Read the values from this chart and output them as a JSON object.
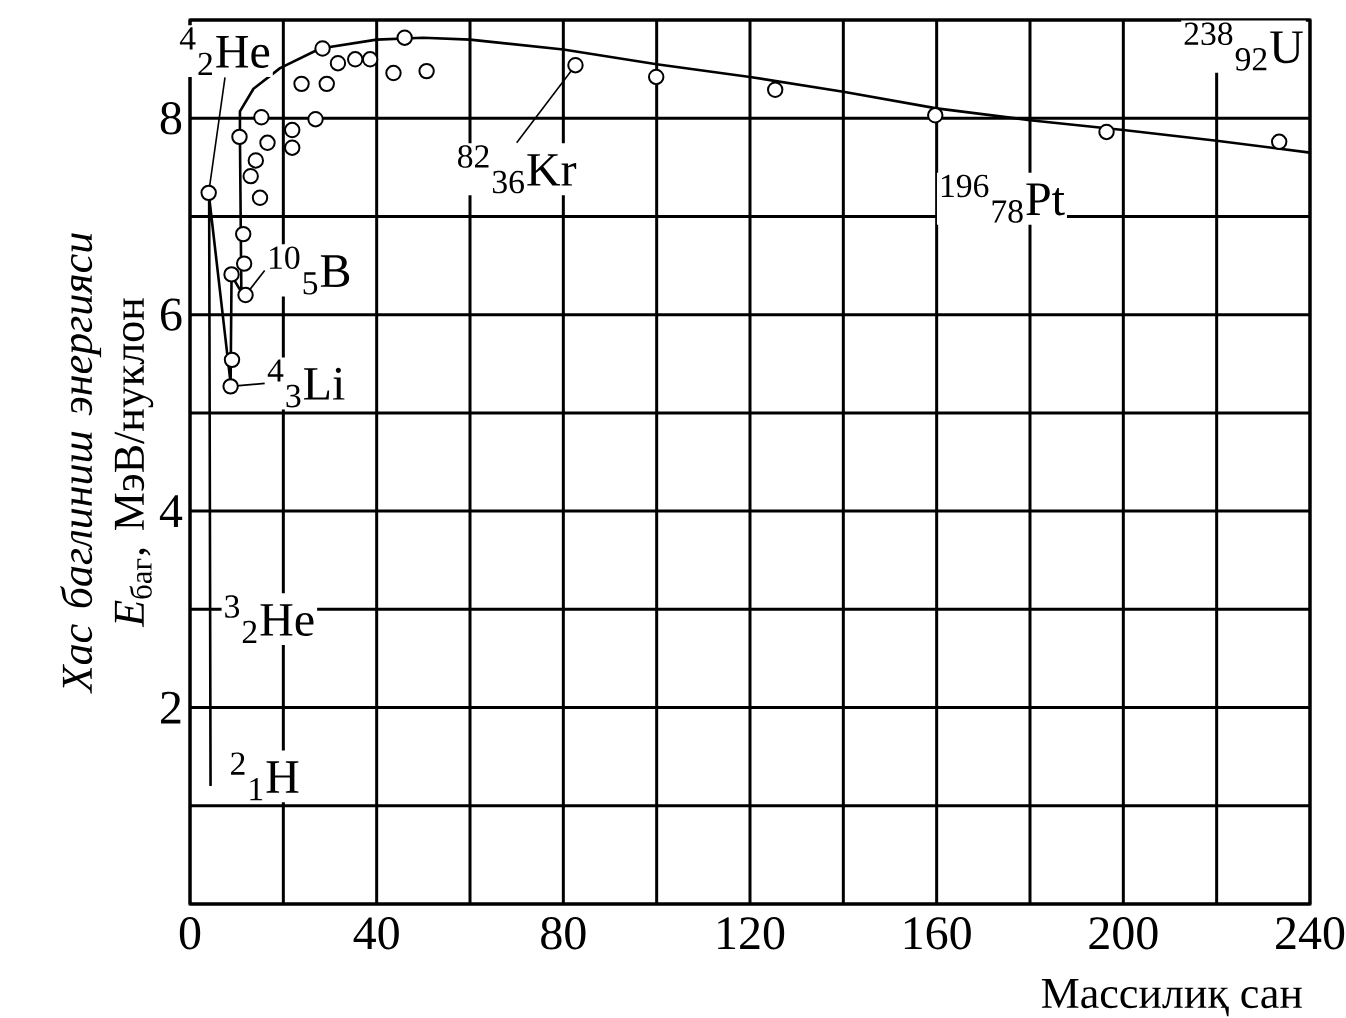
{
  "chart_data": {
    "type": "scatter",
    "xlabel": "Массилиқ сан",
    "ylabel": "*Хас баглиниш энергияси* *E*$_{баг}$, МэВ/нуклон",
    "xlim": [
      0,
      240
    ],
    "ylim": [
      0,
      9
    ],
    "xticks": [
      0,
      {
        "value": 20,
        "label": null
      },
      40,
      {
        "value": 60,
        "label": null
      },
      80,
      {
        "value": 100,
        "label": null
      },
      120,
      {
        "value": 140,
        "label": null
      },
      160,
      {
        "value": 180,
        "label": null
      },
      200,
      {
        "value": 220,
        "label": null
      },
      240
    ],
    "yticks": [
      {
        "value": 0,
        "label": null
      },
      {
        "value": 1,
        "label": null
      },
      2,
      {
        "value": 3,
        "label": null
      },
      4,
      {
        "value": 5,
        "label": null
      },
      6,
      {
        "value": 7,
        "label": null
      },
      8,
      {
        "value": 9,
        "label": null
      }
    ],
    "grid": true,
    "series": [
      {
        "type": "scatter",
        "marker": "circle",
        "color": "#000000",
        "x": [
          4,
          8.7,
          9,
          8.9,
          11.9,
          11.6,
          11.4,
          10.6,
          15.3,
          16.6,
          14.1,
          13,
          15,
          21.9,
          21.9,
          26.9,
          23.9,
          29.3,
          28.4,
          31.7,
          35.4,
          38.6,
          43.6,
          46,
          50.7,
          82.6,
          99.9,
          125.4,
          159.7,
          196.4,
          233.4
        ],
        "values": [
          7.24,
          5.27,
          5.54,
          6.41,
          6.2,
          6.52,
          6.82,
          7.81,
          8.01,
          7.75,
          7.57,
          7.41,
          7.19,
          7.88,
          7.7,
          7.99,
          8.35,
          8.35,
          8.71,
          8.56,
          8.6,
          8.6,
          8.46,
          8.82,
          8.48,
          8.54,
          8.42,
          8.29,
          8.03,
          7.86,
          7.76
        ]
      },
      {
        "type": "line",
        "marker": "none",
        "color": "#000000",
        "x": [
          4.4,
          4.1,
          8.7,
          8.9,
          11,
          10.7,
          10.7,
          13.6,
          19.3,
          27.9,
          40,
          50,
          60,
          80,
          100,
          120,
          140,
          160,
          180,
          200,
          220,
          240
        ],
        "values": [
          1.2,
          7.2,
          5.3,
          6.4,
          6.23,
          7.8,
          8.07,
          8.3,
          8.51,
          8.71,
          8.8,
          8.82,
          8.8,
          8.7,
          8.55,
          8.42,
          8.27,
          8.1,
          7.98,
          7.88,
          7.77,
          7.65
        ]
      }
    ],
    "annotations": [
      {
        "text": "$^{4}$$_{2}$He",
        "x": 4,
        "y": 7.24
      },
      {
        "text": "$^{10}$$_{5}$B",
        "x": 11.9,
        "y": 6.2
      },
      {
        "text": "$^{4}$$_{3}$Li",
        "x": 8.7,
        "y": 5.27
      },
      {
        "text": "$^{82}$$_{36}$Kr",
        "x": 82.6,
        "y": 8.54
      },
      {
        "text": "$^{196}$$_{78}$Pt",
        "x": 159.7,
        "y": 8.03
      },
      {
        "text": "$^{238}$$_{92}$U",
        "x": 233.4,
        "y": 7.76
      },
      "$^{3}$$_{2}$He",
      "$^{2}$$_{1}$H"
    ]
  }
}
